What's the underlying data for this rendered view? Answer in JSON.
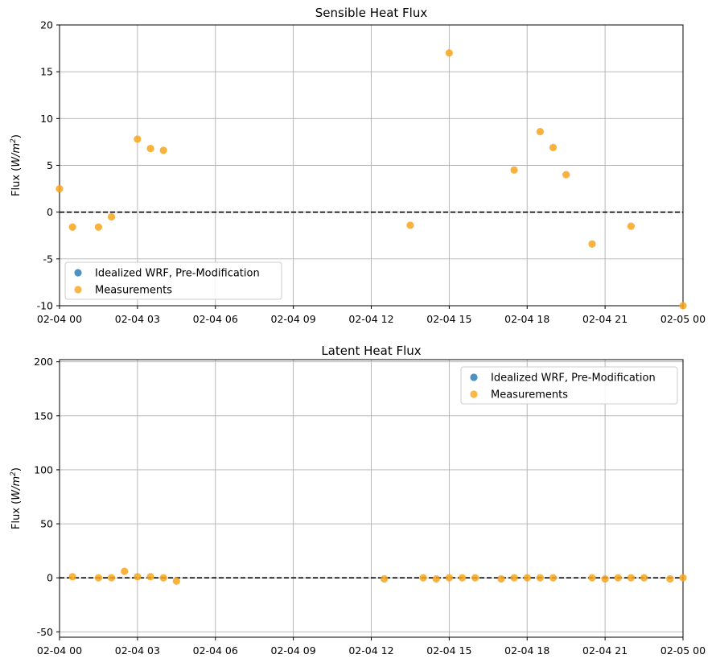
{
  "colors": {
    "wrf": "#1f77b4",
    "meas": "#f7a51b",
    "zero_line": "#000000",
    "grid": "#b0b0b0"
  },
  "chart_data": [
    {
      "type": "scatter",
      "title": "Sensible Heat Flux",
      "ylabel_prefix": "Flux (",
      "ylabel_unit": "W/m",
      "ylabel_sup": "2",
      "ylabel_suffix": ")",
      "x_tick_labels": [
        "02-04 00",
        "02-04 03",
        "02-04 06",
        "02-04 09",
        "02-04 12",
        "02-04 15",
        "02-04 18",
        "02-04 21",
        "02-05 00"
      ],
      "x_range_hours": [
        0,
        24
      ],
      "ylim": [
        -10,
        20
      ],
      "y_ticks": [
        -10,
        -5,
        0,
        5,
        10,
        15,
        20
      ],
      "grid": true,
      "reference_line": 0,
      "legend_position": "lower-left",
      "series": [
        {
          "name": "Idealized WRF, Pre-Modification",
          "color": "#1f77b4",
          "x": [],
          "y": []
        },
        {
          "name": "Measurements",
          "color": "#f7a51b",
          "x": [
            "02-04 00:00",
            "02-04 00:30",
            "02-04 01:30",
            "02-04 02:00",
            "02-04 03:00",
            "02-04 03:30",
            "02-04 04:00",
            "02-04 13:30",
            "02-04 15:00",
            "02-04 17:30",
            "02-04 18:30",
            "02-04 19:00",
            "02-04 19:30",
            "02-04 20:30",
            "02-04 22:00",
            "02-05 00:00"
          ],
          "y": [
            2.5,
            -1.6,
            -1.6,
            -0.5,
            7.8,
            6.8,
            6.6,
            -1.4,
            17.0,
            4.5,
            8.6,
            6.9,
            4.0,
            -3.4,
            -1.5,
            -10.0
          ]
        }
      ]
    },
    {
      "type": "scatter",
      "title": "Latent Heat Flux",
      "ylabel_prefix": "Flux (",
      "ylabel_unit": "W/m",
      "ylabel_sup": "2",
      "ylabel_suffix": ")",
      "x_tick_labels": [
        "02-04 00",
        "02-04 03",
        "02-04 06",
        "02-04 09",
        "02-04 12",
        "02-04 15",
        "02-04 18",
        "02-04 21",
        "02-05 00"
      ],
      "x_range_hours": [
        0,
        24
      ],
      "ylim": [
        -55,
        202
      ],
      "y_ticks": [
        -50,
        0,
        50,
        100,
        150,
        200
      ],
      "grid": true,
      "reference_line": 0,
      "legend_position": "upper-right",
      "series": [
        {
          "name": "Idealized WRF, Pre-Modification",
          "color": "#1f77b4",
          "x": [],
          "y": []
        },
        {
          "name": "Measurements",
          "color": "#f7a51b",
          "x": [
            "02-04 00:30",
            "02-04 01:30",
            "02-04 02:00",
            "02-04 02:30",
            "02-04 03:00",
            "02-04 03:30",
            "02-04 04:00",
            "02-04 04:30",
            "02-04 12:30",
            "02-04 14:00",
            "02-04 14:30",
            "02-04 15:00",
            "02-04 15:30",
            "02-04 16:00",
            "02-04 17:00",
            "02-04 17:30",
            "02-04 18:00",
            "02-04 18:30",
            "02-04 19:00",
            "02-04 20:30",
            "02-04 21:00",
            "02-04 21:30",
            "02-04 22:00",
            "02-04 22:30",
            "02-04 23:30",
            "02-05 00:00"
          ],
          "y": [
            1,
            0,
            0,
            6,
            1,
            1,
            0,
            -3,
            -1,
            0,
            -1,
            0,
            0,
            0,
            -1,
            0,
            0,
            0,
            0,
            0,
            -1,
            0,
            0,
            0,
            -1,
            0
          ]
        }
      ]
    }
  ]
}
